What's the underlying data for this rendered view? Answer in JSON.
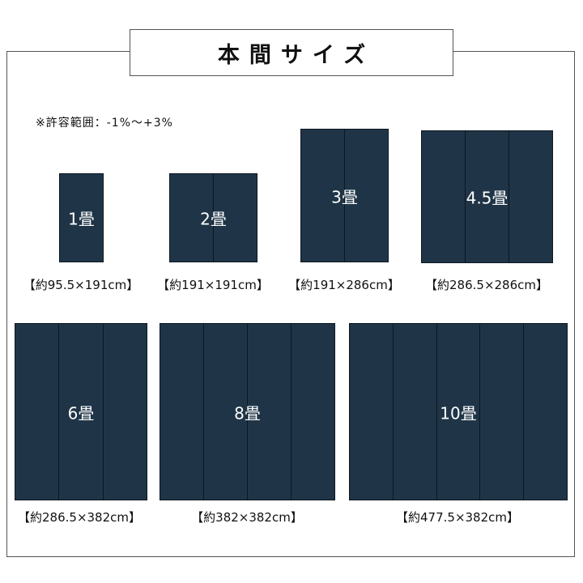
{
  "title": "本間サイズ",
  "note": "※許容範囲：-1%～+3%",
  "colors": {
    "rug": "#1f3547",
    "border": "#0d1620"
  },
  "items": [
    {
      "label": "1畳",
      "size": "【約95.5×191cm】",
      "panels": 1
    },
    {
      "label": "2畳",
      "size": "【約191×191cm】",
      "panels": 2
    },
    {
      "label": "3畳",
      "size": "【約191×286cm】",
      "panels": 2
    },
    {
      "label": "4.5畳",
      "size": "【約286.5×286cm】",
      "panels": 3
    },
    {
      "label": "6畳",
      "size": "【約286.5×382cm】",
      "panels": 3
    },
    {
      "label": "8畳",
      "size": "【約382×382cm】",
      "panels": 4
    },
    {
      "label": "10畳",
      "size": "【約477.5×382cm】",
      "panels": 5
    }
  ]
}
